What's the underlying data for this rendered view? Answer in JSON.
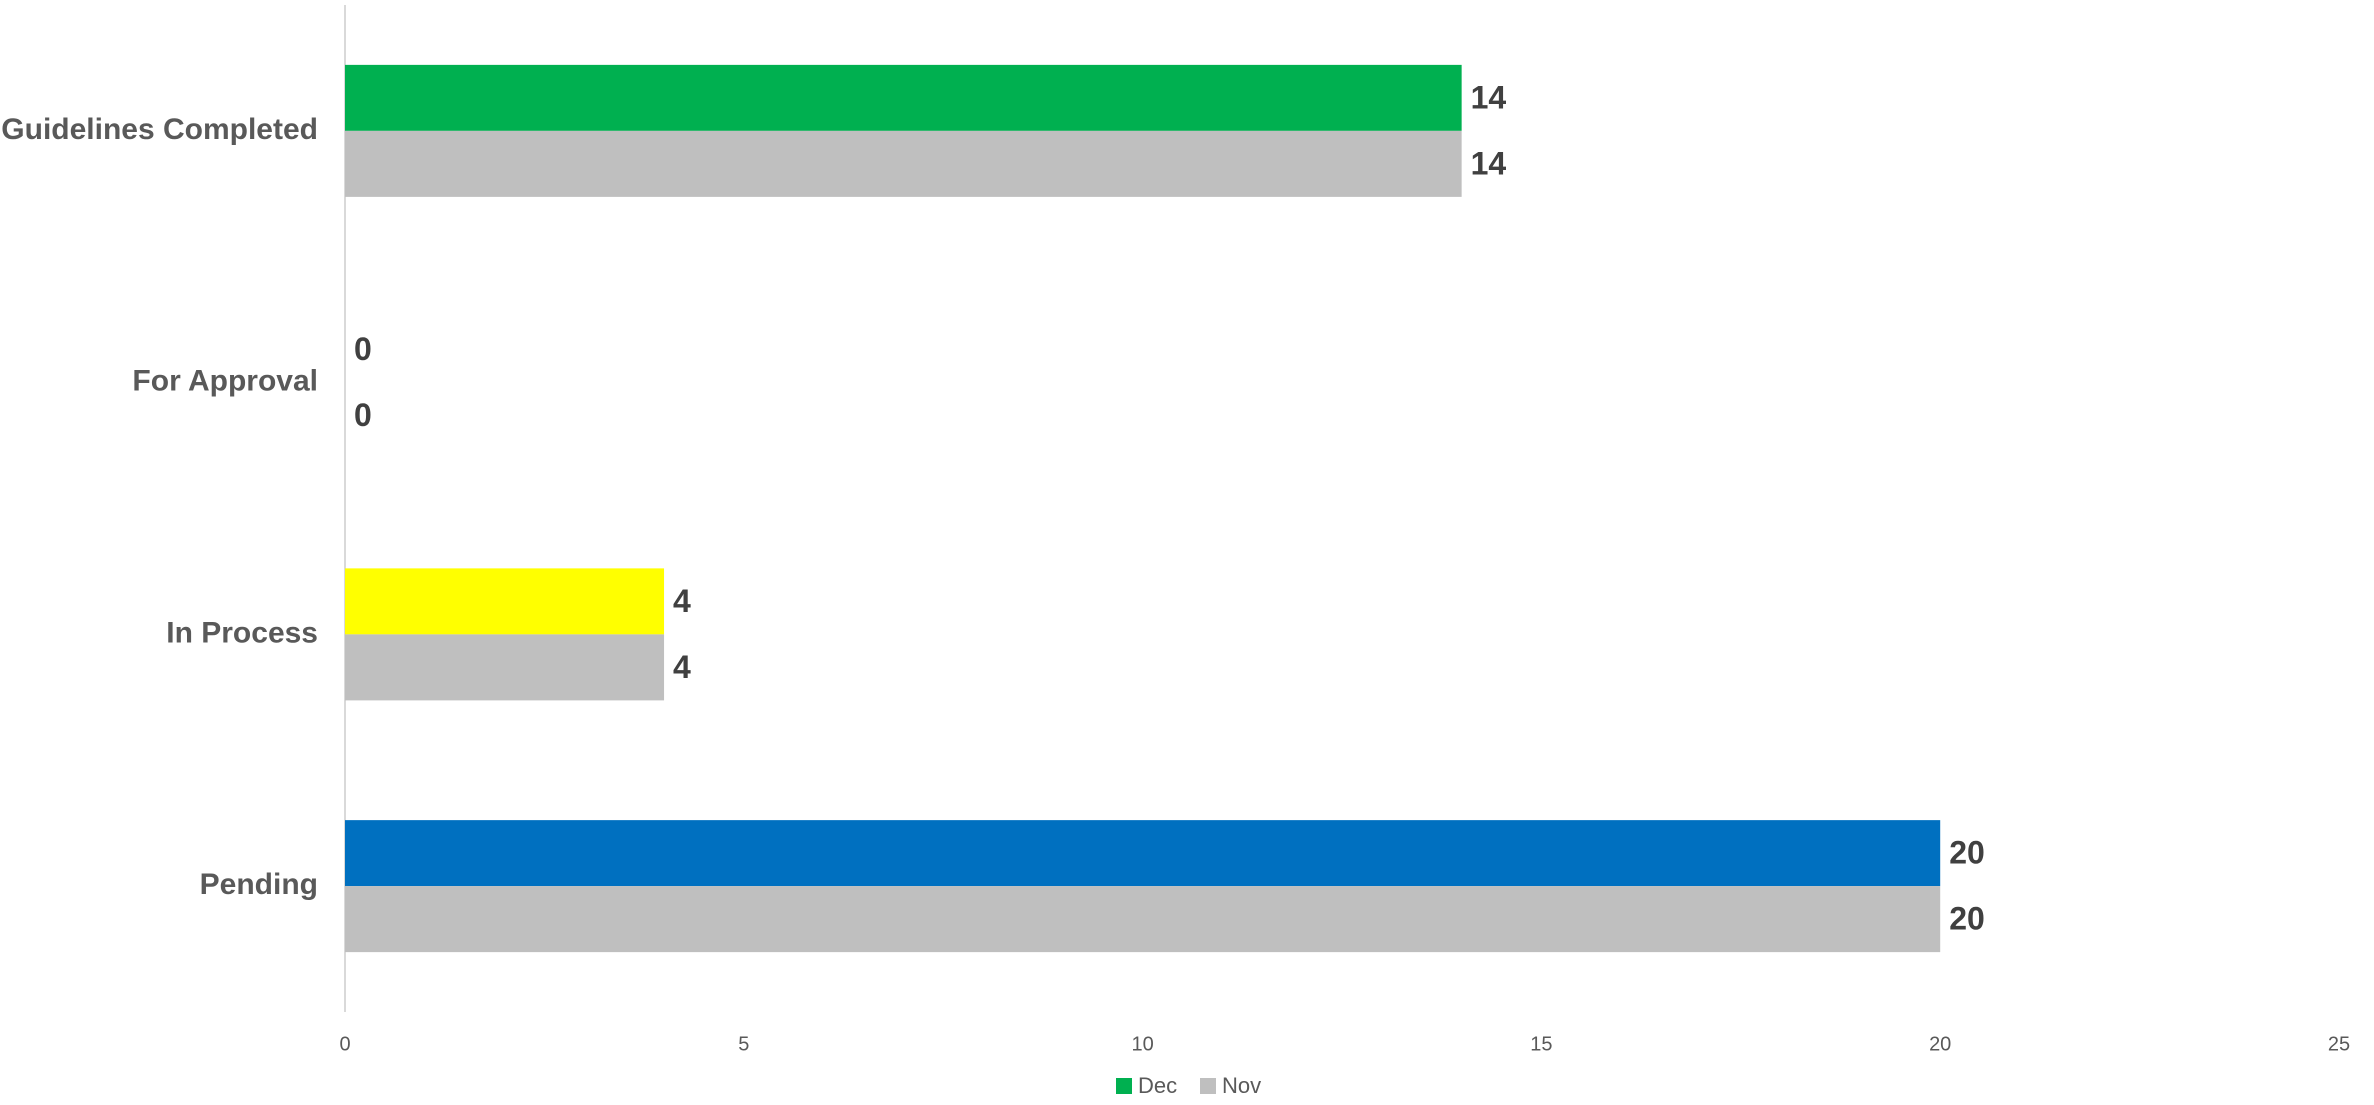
{
  "chart_data": {
    "type": "bar",
    "orientation": "horizontal",
    "categories": [
      "Guidelines Completed",
      "For Approval",
      "In Process",
      "Pending"
    ],
    "series": [
      {
        "name": "Dec",
        "values": [
          14,
          0,
          4,
          20
        ],
        "colors": [
          "#00B050",
          "#00B050",
          "#FFFF00",
          "#0070C0"
        ],
        "legend_color": "#00B050"
      },
      {
        "name": "Nov",
        "values": [
          14,
          0,
          4,
          20
        ],
        "colors": [
          "#BFBFBF",
          "#BFBFBF",
          "#BFBFBF",
          "#BFBFBF"
        ],
        "legend_color": "#BFBFBF"
      }
    ],
    "xlim": [
      0,
      25
    ],
    "xticks": [
      0,
      5,
      10,
      15,
      20,
      25
    ],
    "xtick_labels": [
      "0",
      "5",
      "10",
      "15",
      "20",
      "25"
    ],
    "data_labels": true,
    "legend_position": "bottom",
    "grid": false,
    "title": "",
    "xlabel": "",
    "ylabel": ""
  }
}
